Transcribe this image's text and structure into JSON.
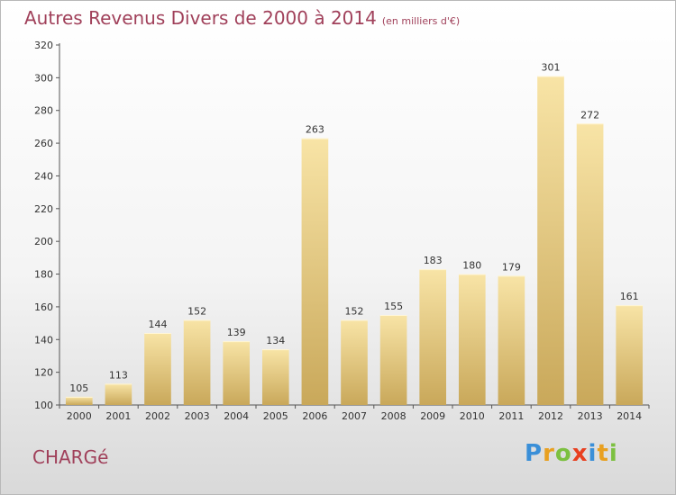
{
  "title": "Autres Revenus Divers de 2000 à 2014",
  "subtitle": "(en milliers d'€)",
  "commune": "CHARGé",
  "logo": {
    "letters": [
      "P",
      "r",
      "o",
      "x",
      "i",
      "t",
      "i"
    ],
    "colors": [
      "#3a8fd8",
      "#e8a020",
      "#7cc040",
      "#e84020",
      "#3a8fd8",
      "#e8a020",
      "#7cc040"
    ]
  },
  "colors": {
    "title": "#a0405a",
    "bar_light": "#f7e0a0",
    "bar_dark": "#c9a85a"
  },
  "chart_data": {
    "type": "bar",
    "categories": [
      "2000",
      "2001",
      "2002",
      "2003",
      "2004",
      "2005",
      "2006",
      "2007",
      "2008",
      "2009",
      "2010",
      "2011",
      "2012",
      "2013",
      "2014"
    ],
    "values": [
      105,
      113,
      144,
      152,
      139,
      134,
      263,
      152,
      155,
      183,
      180,
      179,
      301,
      272,
      161
    ],
    "ylim": [
      100,
      320
    ],
    "yticks": [
      100,
      120,
      140,
      160,
      180,
      200,
      220,
      240,
      260,
      280,
      300,
      320
    ],
    "grid": false,
    "title": "Autres Revenus Divers de 2000 à 2014",
    "xlabel": "",
    "ylabel": ""
  }
}
